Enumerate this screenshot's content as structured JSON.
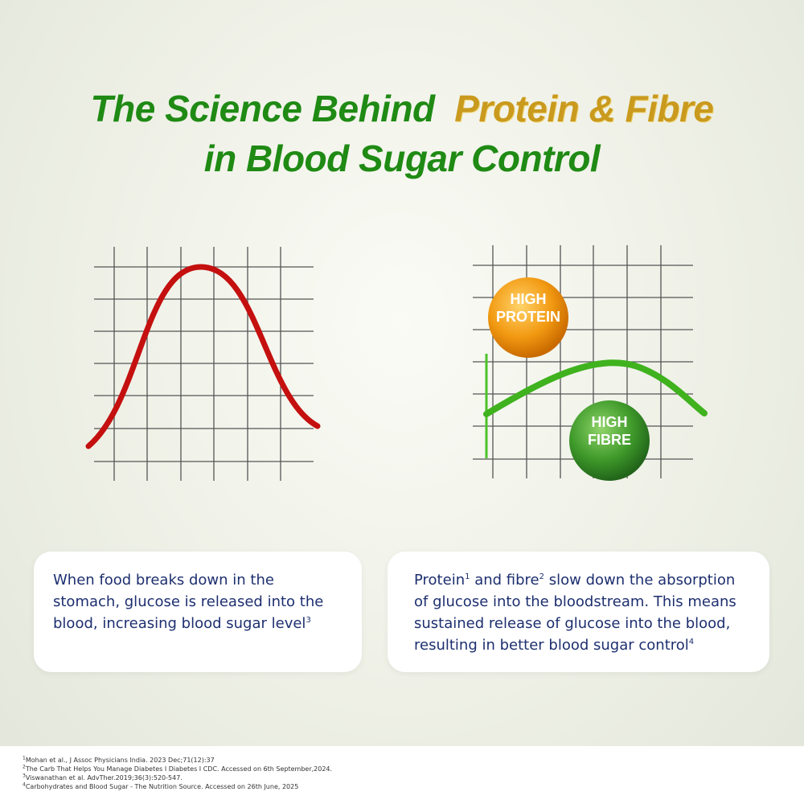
{
  "title": {
    "line1_green": "The Science Behind",
    "line1_gold": "Protein & Fibre",
    "line2": "in Blood Sugar Control"
  },
  "badges": {
    "protein": "HIGH PROTEIN",
    "fibre": "HIGH FIBRE"
  },
  "cards": [
    {
      "text": [
        "When food breaks down in the stomach, glucose is released into the blood, increasing blood sugar level"
      ],
      "refs": [
        "3"
      ]
    },
    {
      "text": [
        "Protein",
        " and fibre",
        " slow down the absorption of glucose into the bloodstream. This means sustained release of glucose into the blood, resulting in better blood sugar control"
      ],
      "refs": [
        "1",
        "2",
        "4"
      ]
    }
  ],
  "footnotes": [
    {
      "ref": "1",
      "text": "Mohan et al., J Assoc Physicians India. 2023 Dec;71(12):37"
    },
    {
      "ref": "2",
      "text": "The Carb That Helps You Manage Diabetes I Diabetes I CDC. Accessed on 6th September,2024."
    },
    {
      "ref": "3",
      "text": "Viswanathan et al. AdvTher.2019;36(3):520-547."
    },
    {
      "ref": "4",
      "text": "Carbohydrates and Blood Sugar - The Nutrition Source. Accessed on 26th June, 2025"
    }
  ]
}
